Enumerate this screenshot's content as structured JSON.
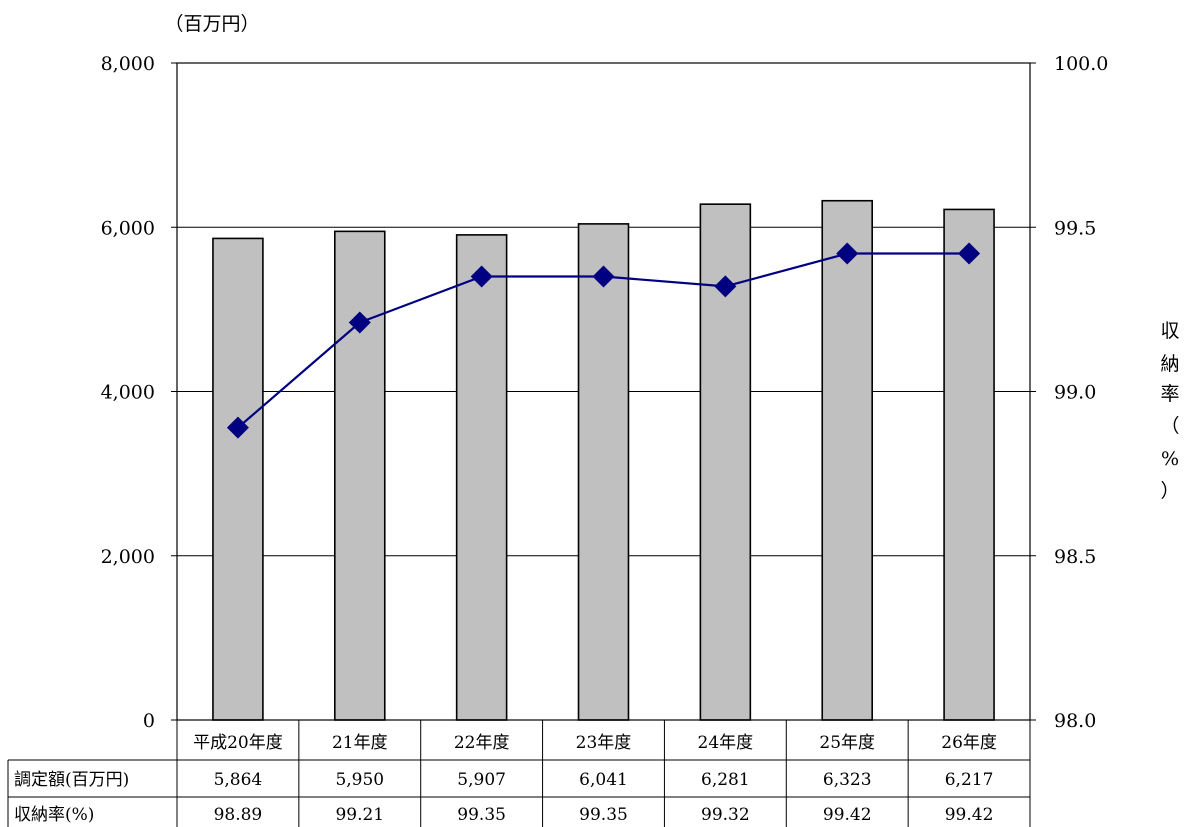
{
  "chart_data": {
    "type": "bar",
    "y_unit_label": "（百万円）",
    "y2_label_chars": [
      "収",
      "納",
      "率",
      "（",
      "%",
      "）"
    ],
    "categories": [
      "平成20年度",
      "21年度",
      "22年度",
      "23年度",
      "24年度",
      "25年度",
      "26年度"
    ],
    "y_ticks": [
      "0",
      "2,000",
      "4,000",
      "6,000",
      "8,000"
    ],
    "y2_ticks": [
      "98.0",
      "98.5",
      "99.0",
      "99.5",
      "100.0"
    ],
    "ylim": [
      0,
      8000
    ],
    "y2lim": [
      98.0,
      100.0
    ],
    "grid": true,
    "series": [
      {
        "name": "調定額(百万円)",
        "type": "bar",
        "axis": "left",
        "values": [
          5864,
          5950,
          5907,
          6041,
          6281,
          6323,
          6217
        ],
        "value_labels": [
          "5,864",
          "5,950",
          "5,907",
          "6,041",
          "6,281",
          "6,323",
          "6,217"
        ],
        "color": "#c0c0c0"
      },
      {
        "name": "収納率(%)",
        "type": "line",
        "axis": "right",
        "values": [
          98.89,
          99.21,
          99.35,
          99.35,
          99.32,
          99.42,
          99.42
        ],
        "value_labels": [
          "98.89",
          "99.21",
          "99.35",
          "99.35",
          "99.32",
          "99.42",
          "99.42"
        ],
        "color": "#000080"
      }
    ]
  }
}
